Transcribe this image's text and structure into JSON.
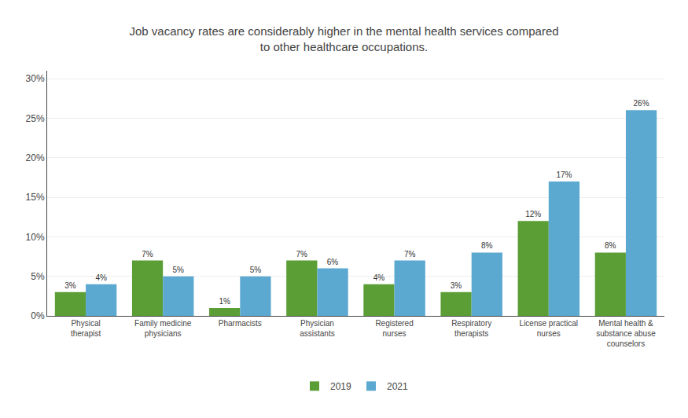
{
  "chart_data": {
    "type": "bar",
    "title": "Job vacancy rates are considerably higher in the mental health services compared\nto other healthcare occupations.",
    "categories": [
      "Physical\ntherapist",
      "Family medicine\nphysicians",
      "Pharmacists",
      "Physician\nassistants",
      "Registered\nnurses",
      "Respiratory\ntherapists",
      "License practical\nnurses",
      "Mental health &\nsubstance abuse\ncounselors"
    ],
    "series": [
      {
        "name": "2019",
        "color": "#5b9e35",
        "values": [
          3,
          7,
          1,
          7,
          4,
          3,
          12,
          8
        ],
        "value_labels": [
          "3%",
          "7%",
          "1%",
          "7%",
          "4%",
          "3%",
          "12%",
          "8%"
        ]
      },
      {
        "name": "2021",
        "color": "#5ba8d0",
        "values": [
          4,
          5,
          5,
          6,
          7,
          8,
          17,
          26
        ],
        "value_labels": [
          "4%",
          "5%",
          "5%",
          "6%",
          "7%",
          "8%",
          "17%",
          "26%"
        ]
      }
    ],
    "ylim": [
      0,
      31
    ],
    "yticks": [
      {
        "value": 0,
        "label": "0%"
      },
      {
        "value": 5,
        "label": "5%"
      },
      {
        "value": 10,
        "label": "10%"
      },
      {
        "value": 15,
        "label": "15%"
      },
      {
        "value": 20,
        "label": "20%"
      },
      {
        "value": 25,
        "label": "25%"
      },
      {
        "value": 30,
        "label": "30%"
      }
    ],
    "grid": true,
    "legend": "bottom",
    "data_labels": true
  }
}
